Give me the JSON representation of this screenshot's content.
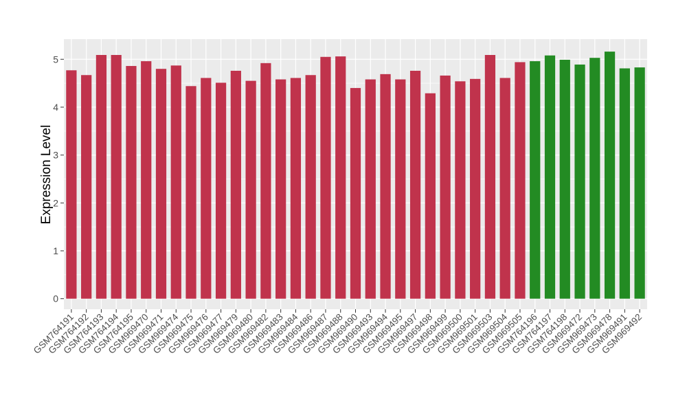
{
  "chart_data": {
    "type": "bar",
    "ylabel": "Expression Level",
    "xlabel": "",
    "title": "",
    "ylim": [
      -0.22,
      5.42
    ],
    "yticks": [
      0,
      1,
      2,
      3,
      4,
      5
    ],
    "grid": true,
    "legend": "none",
    "colors": {
      "group_a": "#c0334c",
      "group_b": "#238b23",
      "panel": "#ebebeb",
      "grid": "#ffffff",
      "tick_text": "#4d4d4d"
    },
    "categories": [
      "GSM764191",
      "GSM764192",
      "GSM764193",
      "GSM764194",
      "GSM764195",
      "GSM969470",
      "GSM969471",
      "GSM969474",
      "GSM969475",
      "GSM969476",
      "GSM969477",
      "GSM969479",
      "GSM969480",
      "GSM969482",
      "GSM969483",
      "GSM969484",
      "GSM969486",
      "GSM969487",
      "GSM969488",
      "GSM969490",
      "GSM969493",
      "GSM969494",
      "GSM969495",
      "GSM969497",
      "GSM969498",
      "GSM969499",
      "GSM969500",
      "GSM969501",
      "GSM969503",
      "GSM969504",
      "GSM969505",
      "GSM764196",
      "GSM764197",
      "GSM764198",
      "GSM969472",
      "GSM969473",
      "GSM969478",
      "GSM969491",
      "GSM969492"
    ],
    "values": [
      4.77,
      4.67,
      5.09,
      5.09,
      4.86,
      4.96,
      4.8,
      4.87,
      4.44,
      4.61,
      4.51,
      4.76,
      4.55,
      4.92,
      4.58,
      4.61,
      4.67,
      5.05,
      5.06,
      4.4,
      4.58,
      4.69,
      4.58,
      4.76,
      4.29,
      4.66,
      4.54,
      4.59,
      5.09,
      4.61,
      4.94,
      4.96,
      5.08,
      4.99,
      4.89,
      5.03,
      5.16,
      4.81,
      4.83
    ],
    "groups": [
      "a",
      "a",
      "a",
      "a",
      "a",
      "a",
      "a",
      "a",
      "a",
      "a",
      "a",
      "a",
      "a",
      "a",
      "a",
      "a",
      "a",
      "a",
      "a",
      "a",
      "a",
      "a",
      "a",
      "a",
      "a",
      "a",
      "a",
      "a",
      "a",
      "a",
      "a",
      "b",
      "b",
      "b",
      "b",
      "b",
      "b",
      "b",
      "b"
    ]
  }
}
